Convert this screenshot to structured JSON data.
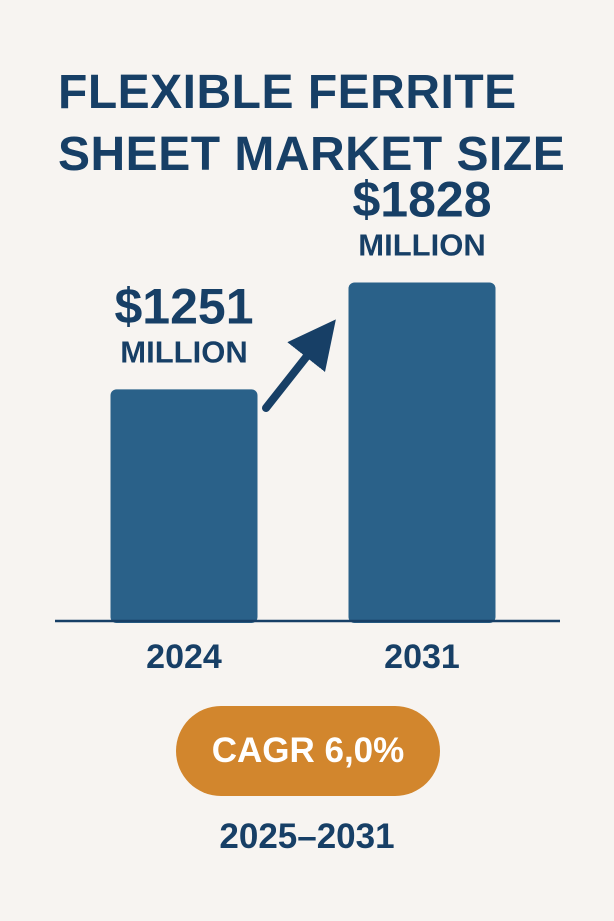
{
  "title_lines": [
    "FLEXIBLE  FERRITE",
    "SHEET MARKET SIZE"
  ],
  "chart_data": {
    "type": "bar",
    "categories": [
      "2024",
      "2031"
    ],
    "values": [
      1251,
      1828
    ],
    "value_labels": [
      "$1251",
      "$1828"
    ],
    "unit_labels": [
      "MILLION",
      "MILLION"
    ],
    "ylim": [
      0,
      2700
    ],
    "bar_color": "#2a6189",
    "text_color": "#173f66",
    "arrow": "up-right-arrow"
  },
  "cagr": {
    "label": "CAGR 6,0%",
    "color": "#d2862d"
  },
  "period": "2025–2031"
}
